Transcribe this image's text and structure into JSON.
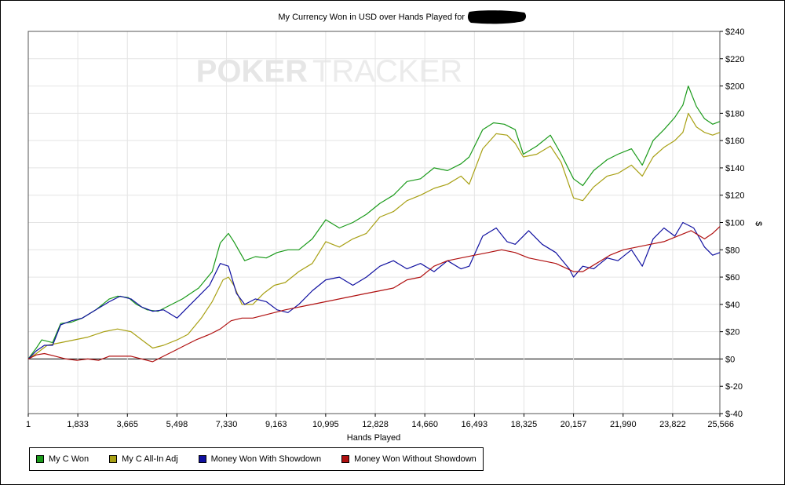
{
  "chart_data": {
    "type": "line",
    "title": "My Currency Won in USD over Hands Played for",
    "redacted_name": "",
    "xlabel": "Hands Played",
    "ylabel": "$",
    "watermark": {
      "left": "POKER",
      "right": "TRACKER"
    },
    "x_ticks": [
      "1",
      "1,833",
      "3,665",
      "5,498",
      "7,330",
      "9,163",
      "10,995",
      "12,828",
      "14,660",
      "16,493",
      "18,325",
      "20,157",
      "21,990",
      "23,822",
      "25,566"
    ],
    "y_ticks": [
      "$240",
      "$220",
      "$200",
      "$180",
      "$160",
      "$140",
      "$120",
      "$100",
      "$80",
      "$60",
      "$40",
      "$20",
      "$0",
      "$-20",
      "$-40"
    ],
    "xlim": [
      1,
      25566
    ],
    "ylim": [
      -40,
      240
    ],
    "grid": true,
    "legend_position": "bottom-left",
    "series": [
      {
        "name": "My C Won",
        "color": "#1a9a1a",
        "points": [
          [
            1,
            0
          ],
          [
            300,
            8
          ],
          [
            500,
            14
          ],
          [
            900,
            12
          ],
          [
            1200,
            26
          ],
          [
            1600,
            27
          ],
          [
            2000,
            30
          ],
          [
            2500,
            36
          ],
          [
            3000,
            44
          ],
          [
            3300,
            46
          ],
          [
            3700,
            45
          ],
          [
            4000,
            40
          ],
          [
            4400,
            36
          ],
          [
            4800,
            35
          ],
          [
            5300,
            40
          ],
          [
            5700,
            44
          ],
          [
            6300,
            52
          ],
          [
            6800,
            64
          ],
          [
            7100,
            85
          ],
          [
            7400,
            92
          ],
          [
            7600,
            86
          ],
          [
            8000,
            72
          ],
          [
            8400,
            75
          ],
          [
            8800,
            74
          ],
          [
            9200,
            78
          ],
          [
            9600,
            80
          ],
          [
            10000,
            80
          ],
          [
            10500,
            88
          ],
          [
            11000,
            102
          ],
          [
            11500,
            96
          ],
          [
            12000,
            100
          ],
          [
            12500,
            106
          ],
          [
            13000,
            114
          ],
          [
            13500,
            120
          ],
          [
            14000,
            130
          ],
          [
            14500,
            132
          ],
          [
            15000,
            140
          ],
          [
            15500,
            138
          ],
          [
            16000,
            143
          ],
          [
            16300,
            148
          ],
          [
            16800,
            168
          ],
          [
            17200,
            173
          ],
          [
            17600,
            172
          ],
          [
            18000,
            168
          ],
          [
            18300,
            150
          ],
          [
            18800,
            156
          ],
          [
            19300,
            164
          ],
          [
            19700,
            150
          ],
          [
            20157,
            132
          ],
          [
            20500,
            127
          ],
          [
            20900,
            138
          ],
          [
            21400,
            146
          ],
          [
            21800,
            150
          ],
          [
            22300,
            154
          ],
          [
            22700,
            142
          ],
          [
            23100,
            160
          ],
          [
            23500,
            168
          ],
          [
            23900,
            177
          ],
          [
            24200,
            186
          ],
          [
            24400,
            200
          ],
          [
            24700,
            185
          ],
          [
            25000,
            176
          ],
          [
            25300,
            172
          ],
          [
            25566,
            174
          ]
        ]
      },
      {
        "name": "My C All-In Adj",
        "color": "#a8a014",
        "points": [
          [
            1,
            0
          ],
          [
            300,
            4
          ],
          [
            700,
            10
          ],
          [
            1200,
            12
          ],
          [
            1700,
            14
          ],
          [
            2200,
            16
          ],
          [
            2800,
            20
          ],
          [
            3300,
            22
          ],
          [
            3800,
            20
          ],
          [
            4200,
            14
          ],
          [
            4600,
            8
          ],
          [
            5000,
            10
          ],
          [
            5500,
            14
          ],
          [
            5900,
            18
          ],
          [
            6400,
            30
          ],
          [
            6800,
            42
          ],
          [
            7200,
            58
          ],
          [
            7400,
            60
          ],
          [
            7600,
            54
          ],
          [
            7900,
            40
          ],
          [
            8300,
            40
          ],
          [
            8700,
            48
          ],
          [
            9100,
            54
          ],
          [
            9500,
            56
          ],
          [
            10000,
            64
          ],
          [
            10500,
            70
          ],
          [
            11000,
            86
          ],
          [
            11500,
            82
          ],
          [
            12000,
            88
          ],
          [
            12500,
            92
          ],
          [
            13000,
            104
          ],
          [
            13500,
            108
          ],
          [
            14000,
            116
          ],
          [
            14500,
            120
          ],
          [
            15000,
            125
          ],
          [
            15500,
            128
          ],
          [
            16000,
            134
          ],
          [
            16300,
            128
          ],
          [
            16800,
            154
          ],
          [
            17300,
            165
          ],
          [
            17700,
            164
          ],
          [
            18000,
            158
          ],
          [
            18300,
            148
          ],
          [
            18800,
            150
          ],
          [
            19300,
            156
          ],
          [
            19700,
            144
          ],
          [
            20157,
            118
          ],
          [
            20500,
            116
          ],
          [
            20900,
            126
          ],
          [
            21400,
            134
          ],
          [
            21800,
            136
          ],
          [
            22300,
            142
          ],
          [
            22700,
            134
          ],
          [
            23100,
            148
          ],
          [
            23500,
            155
          ],
          [
            23900,
            160
          ],
          [
            24200,
            166
          ],
          [
            24400,
            180
          ],
          [
            24700,
            170
          ],
          [
            25000,
            166
          ],
          [
            25300,
            164
          ],
          [
            25566,
            166
          ]
        ]
      },
      {
        "name": "Money Won With Showdown",
        "color": "#1010a0",
        "points": [
          [
            1,
            0
          ],
          [
            300,
            6
          ],
          [
            600,
            10
          ],
          [
            900,
            10
          ],
          [
            1200,
            25
          ],
          [
            1600,
            28
          ],
          [
            2000,
            30
          ],
          [
            2500,
            36
          ],
          [
            3000,
            42
          ],
          [
            3400,
            46
          ],
          [
            3800,
            44
          ],
          [
            4200,
            38
          ],
          [
            4600,
            35
          ],
          [
            5000,
            36
          ],
          [
            5500,
            30
          ],
          [
            5900,
            38
          ],
          [
            6300,
            46
          ],
          [
            6700,
            54
          ],
          [
            7100,
            70
          ],
          [
            7400,
            68
          ],
          [
            7700,
            48
          ],
          [
            8000,
            40
          ],
          [
            8400,
            44
          ],
          [
            8800,
            42
          ],
          [
            9200,
            36
          ],
          [
            9600,
            34
          ],
          [
            10000,
            40
          ],
          [
            10500,
            50
          ],
          [
            11000,
            58
          ],
          [
            11500,
            60
          ],
          [
            12000,
            54
          ],
          [
            12500,
            60
          ],
          [
            13000,
            68
          ],
          [
            13500,
            72
          ],
          [
            14000,
            66
          ],
          [
            14500,
            70
          ],
          [
            15000,
            64
          ],
          [
            15500,
            72
          ],
          [
            16000,
            66
          ],
          [
            16300,
            68
          ],
          [
            16800,
            90
          ],
          [
            17300,
            96
          ],
          [
            17700,
            86
          ],
          [
            18000,
            84
          ],
          [
            18500,
            94
          ],
          [
            19000,
            84
          ],
          [
            19500,
            78
          ],
          [
            20000,
            66
          ],
          [
            20157,
            60
          ],
          [
            20500,
            68
          ],
          [
            20900,
            66
          ],
          [
            21400,
            74
          ],
          [
            21800,
            72
          ],
          [
            22300,
            80
          ],
          [
            22700,
            68
          ],
          [
            23100,
            88
          ],
          [
            23500,
            96
          ],
          [
            23900,
            90
          ],
          [
            24200,
            100
          ],
          [
            24600,
            96
          ],
          [
            25000,
            82
          ],
          [
            25300,
            76
          ],
          [
            25566,
            78
          ]
        ]
      },
      {
        "name": "Money Won Without Showdown",
        "color": "#b01010",
        "points": [
          [
            1,
            0
          ],
          [
            300,
            3
          ],
          [
            600,
            4
          ],
          [
            1000,
            2
          ],
          [
            1400,
            0
          ],
          [
            1800,
            -1
          ],
          [
            2200,
            0
          ],
          [
            2600,
            -1
          ],
          [
            3000,
            2
          ],
          [
            3400,
            2
          ],
          [
            3800,
            2
          ],
          [
            4200,
            0
          ],
          [
            4600,
            -2
          ],
          [
            5000,
            2
          ],
          [
            5400,
            6
          ],
          [
            5800,
            10
          ],
          [
            6200,
            14
          ],
          [
            6700,
            18
          ],
          [
            7100,
            22
          ],
          [
            7500,
            28
          ],
          [
            7900,
            30
          ],
          [
            8300,
            30
          ],
          [
            8700,
            32
          ],
          [
            9100,
            34
          ],
          [
            9500,
            36
          ],
          [
            10000,
            38
          ],
          [
            10500,
            40
          ],
          [
            11000,
            42
          ],
          [
            11500,
            44
          ],
          [
            12000,
            46
          ],
          [
            12500,
            48
          ],
          [
            13000,
            50
          ],
          [
            13500,
            52
          ],
          [
            14000,
            58
          ],
          [
            14500,
            60
          ],
          [
            15000,
            68
          ],
          [
            15500,
            72
          ],
          [
            16000,
            74
          ],
          [
            16500,
            76
          ],
          [
            17000,
            78
          ],
          [
            17500,
            80
          ],
          [
            18000,
            78
          ],
          [
            18500,
            74
          ],
          [
            19000,
            72
          ],
          [
            19500,
            70
          ],
          [
            20157,
            64
          ],
          [
            20500,
            64
          ],
          [
            21000,
            70
          ],
          [
            21500,
            76
          ],
          [
            22000,
            80
          ],
          [
            22500,
            82
          ],
          [
            23000,
            84
          ],
          [
            23500,
            86
          ],
          [
            24000,
            90
          ],
          [
            24500,
            94
          ],
          [
            25000,
            88
          ],
          [
            25300,
            92
          ],
          [
            25566,
            97
          ]
        ]
      }
    ]
  }
}
